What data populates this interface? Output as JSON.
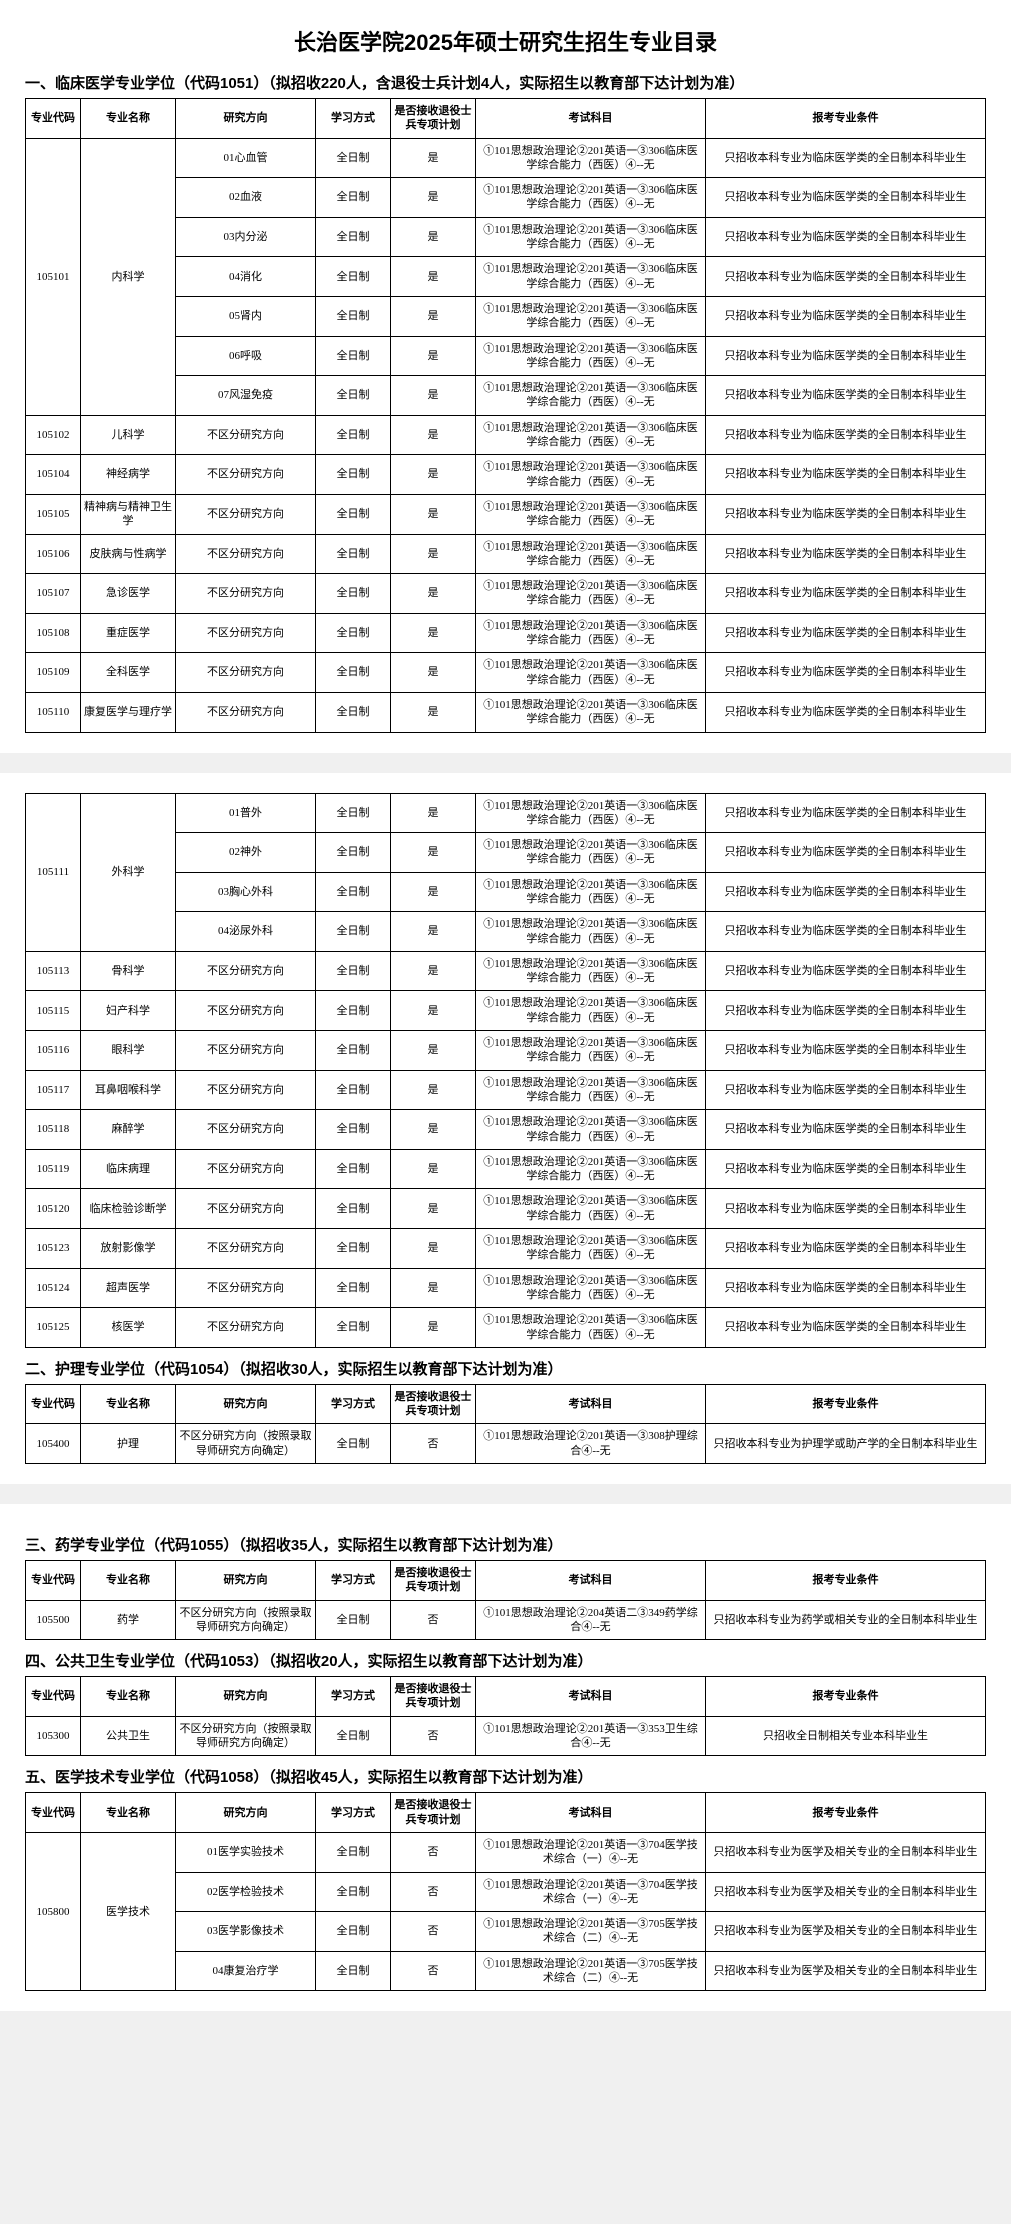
{
  "title": "长治医学院2025年硕士研究生招生专业目录",
  "exam_clinical": "①101思想政治理论②201英语一③306临床医学综合能力（西医）④--无",
  "exam_nursing": "①101思想政治理论②201英语一③308护理综合④--无",
  "exam_pharmacy": "①101思想政治理论②204英语二③349药学综合④--无",
  "exam_pubhealth": "①101思想政治理论②201英语一③353卫生综合④--无",
  "exam_medtech_704": "①101思想政治理论②201英语一③704医学技术综合（一）④--无",
  "exam_medtech_705": "①101思想政治理论②201英语一③705医学技术综合（二）④--无",
  "cond_clinical": "只招收本科专业为临床医学类的全日制本科毕业生",
  "cond_nursing": "只招收本科专业为护理学或助产学的全日制本科毕业生",
  "cond_pharmacy": "只招收本科专业为药学或相关专业的全日制本科毕业生",
  "cond_pubhealth": "只招收全日制相关专业本科毕业生",
  "cond_medtech": "只招收本科专业为医学及相关专业的全日制本科毕业生",
  "headers": {
    "code": "专业代码",
    "name": "专业名称",
    "dir": "研究方向",
    "mode": "学习方式",
    "vet": "是否接收退役士兵专项计划",
    "subj": "考试科目",
    "cond": "报考专业条件"
  },
  "mode_ft": "全日制",
  "vet_yes": "是",
  "vet_no": "否",
  "dir_none": "不区分研究方向",
  "dir_advisor": "不区分研究方向（按照录取导师研究方向确定）",
  "sections": [
    {
      "id": "s1",
      "title": "一、临床医学专业学位（代码1051）（拟招收220人，含退役士兵计划4人，实际招生以教育部下达计划为准）"
    },
    {
      "id": "s2",
      "title": "二、护理专业学位（代码1054）（拟招收30人，实际招生以教育部下达计划为准）"
    },
    {
      "id": "s3",
      "title": "三、药学专业学位（代码1055）（拟招收35人，实际招生以教育部下达计划为准）"
    },
    {
      "id": "s4",
      "title": "四、公共卫生专业学位（代码1053）（拟招收20人，实际招生以教育部下达计划为准）"
    },
    {
      "id": "s5",
      "title": "五、医学技术专业学位（代码1058）（拟招收45人，实际招生以教育部下达计划为准）"
    }
  ],
  "table1a": [
    {
      "code": "105101",
      "name": "内科学",
      "dirs": [
        "01心血管",
        "02血液",
        "03内分泌",
        "04消化",
        "05肾内",
        "06呼吸",
        "07风湿免疫"
      ],
      "vet": "vet_yes",
      "exam": "exam_clinical",
      "cond": "cond_clinical"
    },
    {
      "code": "105102",
      "name": "儿科学",
      "dirs": [
        "dir_none"
      ],
      "vet": "vet_yes",
      "exam": "exam_clinical",
      "cond": "cond_clinical"
    },
    {
      "code": "105104",
      "name": "神经病学",
      "dirs": [
        "dir_none"
      ],
      "vet": "vet_yes",
      "exam": "exam_clinical",
      "cond": "cond_clinical"
    },
    {
      "code": "105105",
      "name": "精神病与精神卫生学",
      "dirs": [
        "dir_none"
      ],
      "vet": "vet_yes",
      "exam": "exam_clinical",
      "cond": "cond_clinical"
    },
    {
      "code": "105106",
      "name": "皮肤病与性病学",
      "dirs": [
        "dir_none"
      ],
      "vet": "vet_yes",
      "exam": "exam_clinical",
      "cond": "cond_clinical"
    },
    {
      "code": "105107",
      "name": "急诊医学",
      "dirs": [
        "dir_none"
      ],
      "vet": "vet_yes",
      "exam": "exam_clinical",
      "cond": "cond_clinical"
    },
    {
      "code": "105108",
      "name": "重症医学",
      "dirs": [
        "dir_none"
      ],
      "vet": "vet_yes",
      "exam": "exam_clinical",
      "cond": "cond_clinical"
    },
    {
      "code": "105109",
      "name": "全科医学",
      "dirs": [
        "dir_none"
      ],
      "vet": "vet_yes",
      "exam": "exam_clinical",
      "cond": "cond_clinical"
    },
    {
      "code": "105110",
      "name": "康复医学与理疗学",
      "dirs": [
        "dir_none"
      ],
      "vet": "vet_yes",
      "exam": "exam_clinical",
      "cond": "cond_clinical"
    }
  ],
  "table1b": [
    {
      "code": "105111",
      "name": "外科学",
      "dirs": [
        "01普外",
        "02神外",
        "03胸心外科",
        "04泌尿外科"
      ],
      "vet": "vet_yes",
      "exam": "exam_clinical",
      "cond": "cond_clinical"
    },
    {
      "code": "105113",
      "name": "骨科学",
      "dirs": [
        "dir_none"
      ],
      "vet": "vet_yes",
      "exam": "exam_clinical",
      "cond": "cond_clinical"
    },
    {
      "code": "105115",
      "name": "妇产科学",
      "dirs": [
        "dir_none"
      ],
      "vet": "vet_yes",
      "exam": "exam_clinical",
      "cond": "cond_clinical"
    },
    {
      "code": "105116",
      "name": "眼科学",
      "dirs": [
        "dir_none"
      ],
      "vet": "vet_yes",
      "exam": "exam_clinical",
      "cond": "cond_clinical"
    },
    {
      "code": "105117",
      "name": "耳鼻咽喉科学",
      "dirs": [
        "dir_none"
      ],
      "vet": "vet_yes",
      "exam": "exam_clinical",
      "cond": "cond_clinical"
    },
    {
      "code": "105118",
      "name": "麻醉学",
      "dirs": [
        "dir_none"
      ],
      "vet": "vet_yes",
      "exam": "exam_clinical",
      "cond": "cond_clinical"
    },
    {
      "code": "105119",
      "name": "临床病理",
      "dirs": [
        "dir_none"
      ],
      "vet": "vet_yes",
      "exam": "exam_clinical",
      "cond": "cond_clinical"
    },
    {
      "code": "105120",
      "name": "临床检验诊断学",
      "dirs": [
        "dir_none"
      ],
      "vet": "vet_yes",
      "exam": "exam_clinical",
      "cond": "cond_clinical"
    },
    {
      "code": "105123",
      "name": "放射影像学",
      "dirs": [
        "dir_none"
      ],
      "vet": "vet_yes",
      "exam": "exam_clinical",
      "cond": "cond_clinical"
    },
    {
      "code": "105124",
      "name": "超声医学",
      "dirs": [
        "dir_none"
      ],
      "vet": "vet_yes",
      "exam": "exam_clinical",
      "cond": "cond_clinical"
    },
    {
      "code": "105125",
      "name": "核医学",
      "dirs": [
        "dir_none"
      ],
      "vet": "vet_yes",
      "exam": "exam_clinical",
      "cond": "cond_clinical"
    }
  ],
  "table2": [
    {
      "code": "105400",
      "name": "护理",
      "dirs": [
        "dir_advisor"
      ],
      "vet": "vet_no",
      "exam": "exam_nursing",
      "cond": "cond_nursing"
    }
  ],
  "table3": [
    {
      "code": "105500",
      "name": "药学",
      "dirs": [
        "dir_advisor"
      ],
      "vet": "vet_no",
      "exam": "exam_pharmacy",
      "cond": "cond_pharmacy"
    }
  ],
  "table4": [
    {
      "code": "105300",
      "name": "公共卫生",
      "dirs": [
        "dir_advisor"
      ],
      "vet": "vet_no",
      "exam": "exam_pubhealth",
      "cond": "cond_pubhealth"
    }
  ],
  "table5": [
    {
      "code": "105800",
      "name": "医学技术",
      "dirs": [
        "01医学实验技术",
        "02医学检验技术",
        "03医学影像技术",
        "04康复治疗学"
      ],
      "vet": "vet_no",
      "exams": [
        "exam_medtech_704",
        "exam_medtech_704",
        "exam_medtech_705",
        "exam_medtech_705"
      ],
      "cond": "cond_medtech"
    }
  ]
}
